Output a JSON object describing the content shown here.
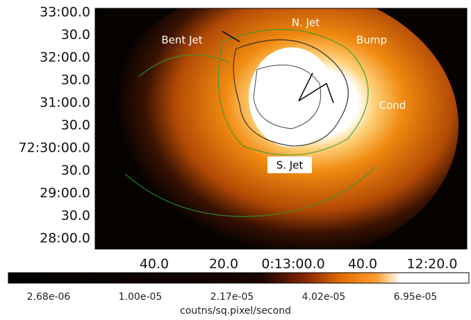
{
  "image": {
    "y_axis_labels": [
      "33:00.0",
      "30.0",
      "32:00.0",
      "30.0",
      "31:00.0",
      "30.0",
      "72:30:00.0",
      "30.0",
      "29:00.0",
      "30.0",
      "28:00.0"
    ],
    "x_axis_labels": [
      "40.0",
      "20.0",
      "0:13:00.0",
      "40.0",
      "12:20.0"
    ],
    "annotations": [
      "Bent Jet",
      "N. Jet",
      "Bump",
      "Cond",
      "S. Jet"
    ]
  },
  "colorbar": {
    "labels": [
      "2.68e-06",
      "1.00e-05",
      "2.17e-05",
      "4.02e-05",
      "6.95e-05"
    ],
    "title": "coutns/sq.pixel/second"
  }
}
